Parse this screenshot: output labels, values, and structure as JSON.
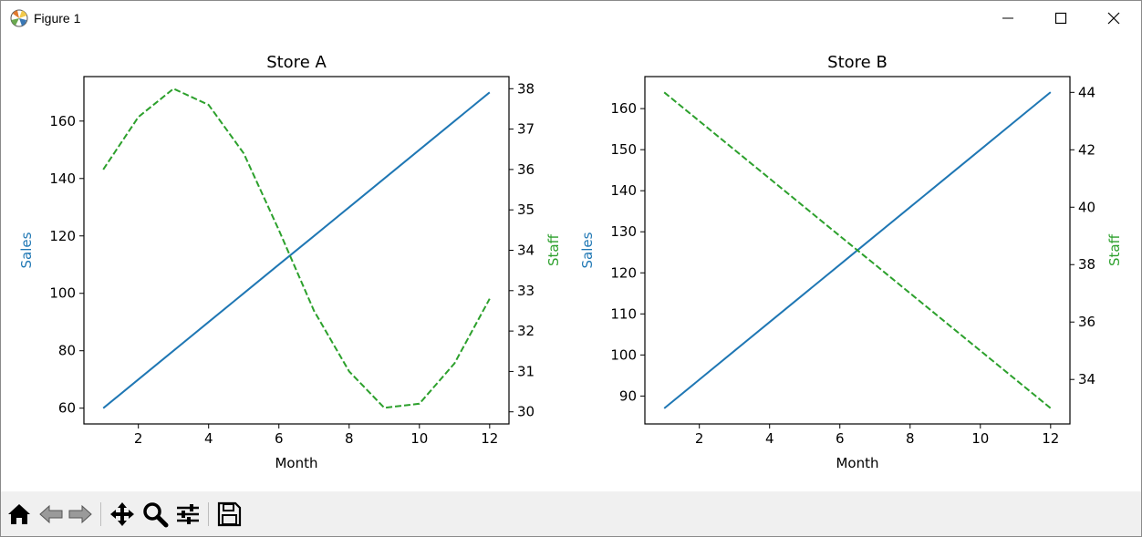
{
  "window": {
    "title": "Figure 1"
  },
  "colors": {
    "sales": "#1f77b4",
    "staff": "#2ca02c",
    "axis": "#000000"
  },
  "toolbar": {
    "tools": [
      "home-icon",
      "back-icon",
      "forward-icon",
      "pan-icon",
      "zoom-icon",
      "configure-subplots-icon",
      "save-icon"
    ]
  },
  "chart_data": [
    {
      "type": "line",
      "title": "Store A",
      "xlabel": "Month",
      "ylabel": "Sales",
      "y2label": "Staff",
      "xlim": [
        0.45,
        12.55
      ],
      "ylim": [
        54.5,
        175.5
      ],
      "y2lim": [
        29.7,
        38.3
      ],
      "xticks": [
        2,
        4,
        6,
        8,
        10,
        12
      ],
      "yticks": [
        60,
        80,
        100,
        120,
        140,
        160
      ],
      "y2ticks": [
        30,
        31,
        32,
        33,
        34,
        35,
        36,
        37,
        38
      ],
      "x": [
        1,
        2,
        3,
        4,
        5,
        6,
        7,
        8,
        9,
        10,
        11,
        12
      ],
      "series": [
        {
          "name": "Sales",
          "axis": "left",
          "style": "solid",
          "values": [
            60,
            70,
            80,
            90,
            100,
            110,
            120,
            130,
            140,
            150,
            160,
            170
          ]
        },
        {
          "name": "Staff",
          "axis": "right",
          "style": "dashed",
          "values": [
            36.0,
            37.3,
            38.0,
            37.6,
            36.4,
            34.5,
            32.5,
            31.0,
            30.1,
            30.2,
            31.2,
            32.8
          ]
        }
      ]
    },
    {
      "type": "line",
      "title": "Store B",
      "xlabel": "Month",
      "ylabel": "Sales",
      "y2label": "Staff",
      "xlim": [
        0.45,
        12.55
      ],
      "ylim": [
        83.2,
        167.8
      ],
      "y2lim": [
        32.45,
        44.55
      ],
      "xticks": [
        2,
        4,
        6,
        8,
        10,
        12
      ],
      "yticks": [
        90,
        100,
        110,
        120,
        130,
        140,
        150,
        160
      ],
      "y2ticks": [
        34,
        36,
        38,
        40,
        42,
        44
      ],
      "x": [
        1,
        2,
        3,
        4,
        5,
        6,
        7,
        8,
        9,
        10,
        11,
        12
      ],
      "series": [
        {
          "name": "Sales",
          "axis": "left",
          "style": "solid",
          "values": [
            87,
            94,
            101,
            108,
            115,
            122,
            129,
            136,
            143,
            150,
            157,
            164
          ]
        },
        {
          "name": "Staff",
          "axis": "right",
          "style": "dashed",
          "values": [
            44,
            43,
            42,
            41,
            40,
            39,
            38,
            37,
            36,
            35,
            34,
            33
          ]
        }
      ]
    }
  ]
}
